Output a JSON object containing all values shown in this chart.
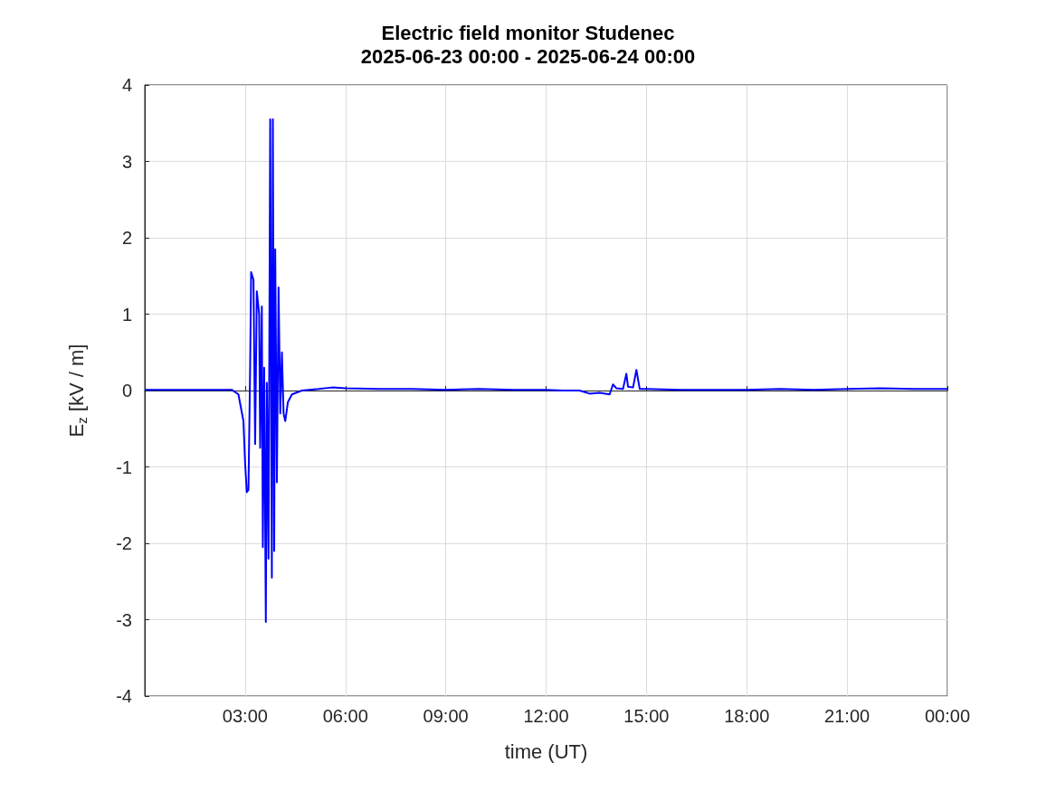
{
  "chart_data": {
    "type": "line",
    "title": "Electric field monitor Studenec",
    "subtitle": "2025-06-23 00:00 - 2025-06-24 00:00",
    "xlabel": "time (UT)",
    "ylabel": "E$_{z}$ [kV / m]",
    "xlim": [
      0,
      24
    ],
    "xticks": [
      {
        "value": 3,
        "label": "03:00"
      },
      {
        "value": 6,
        "label": "06:00"
      },
      {
        "value": 9,
        "label": "09:00"
      },
      {
        "value": 12,
        "label": "12:00"
      },
      {
        "value": 15,
        "label": "15:00"
      },
      {
        "value": 18,
        "label": "18:00"
      },
      {
        "value": 21,
        "label": "21:00"
      },
      {
        "value": 24,
        "label": "00:00"
      }
    ],
    "ylim": [
      -4,
      4
    ],
    "yticks": [
      -4,
      -3,
      -2,
      -1,
      0,
      1,
      2,
      3,
      4
    ],
    "grid": true,
    "marker": "none",
    "line_style": "solid",
    "x": [
      0,
      1,
      2,
      2.6,
      2.8,
      2.95,
      3.0,
      3.05,
      3.1,
      3.15,
      3.18,
      3.25,
      3.3,
      3.35,
      3.42,
      3.45,
      3.5,
      3.53,
      3.57,
      3.62,
      3.65,
      3.7,
      3.75,
      3.8,
      3.83,
      3.87,
      3.9,
      3.95,
      4.0,
      4.05,
      4.1,
      4.15,
      4.2,
      4.28,
      4.4,
      4.7,
      5.2,
      5.6,
      6.0,
      7,
      8,
      9,
      10,
      11,
      12,
      12.5,
      13,
      13.3,
      13.6,
      13.9,
      14.0,
      14.1,
      14.3,
      14.4,
      14.45,
      14.6,
      14.7,
      14.8,
      15,
      16,
      17,
      18,
      19,
      20,
      21,
      22,
      23,
      24
    ],
    "series": [
      {
        "color": "#0000ff",
        "values": [
          0.01,
          0.01,
          0.01,
          0.01,
          -0.05,
          -0.4,
          -0.95,
          -1.33,
          -1.3,
          0.3,
          1.55,
          1.45,
          -0.7,
          1.3,
          1.0,
          -0.75,
          1.1,
          -2.05,
          0.3,
          -3.03,
          0.1,
          -2.2,
          3.55,
          -2.45,
          3.55,
          -2.1,
          1.85,
          -1.2,
          1.35,
          -0.3,
          0.5,
          -0.3,
          -0.4,
          -0.15,
          -0.05,
          0.0,
          0.02,
          0.04,
          0.03,
          0.02,
          0.02,
          0.01,
          0.02,
          0.01,
          0.01,
          0.0,
          0.0,
          -0.04,
          -0.03,
          -0.05,
          0.08,
          0.03,
          0.02,
          0.22,
          0.05,
          0.04,
          0.27,
          0.02,
          0.02,
          0.01,
          0.01,
          0.01,
          0.02,
          0.01,
          0.02,
          0.03,
          0.02,
          0.02
        ]
      }
    ]
  }
}
